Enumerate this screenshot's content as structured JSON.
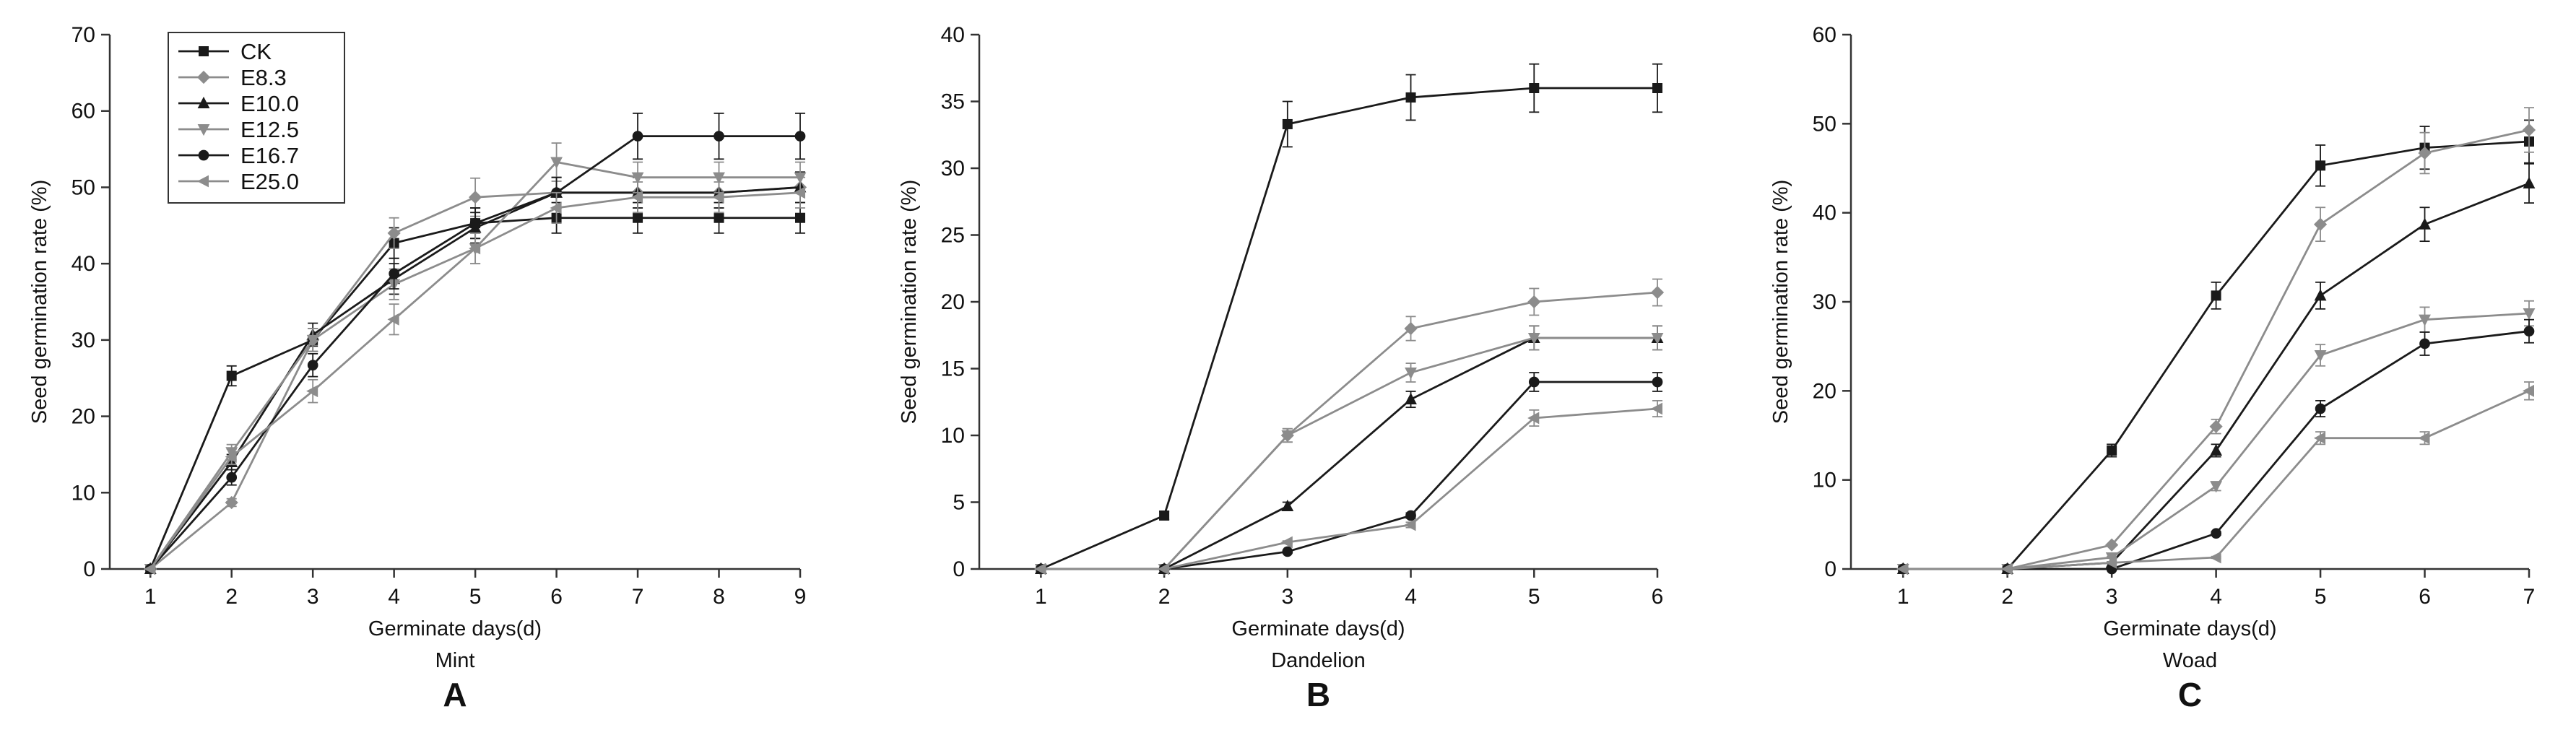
{
  "chart_data": [
    {
      "type": "line",
      "panel_letter": "A",
      "plant": "Mint",
      "xlabel": "Germinate days(d)",
      "ylabel": "Seed germination rate (%)",
      "xlim": [
        0.5,
        9
      ],
      "ylim": [
        0,
        70
      ],
      "x_ticks": [
        1,
        2,
        3,
        4,
        5,
        6,
        7,
        8,
        9
      ],
      "y_ticks": [
        0,
        10,
        20,
        30,
        40,
        50,
        60,
        70
      ],
      "x": [
        1,
        2,
        3,
        4,
        5,
        6,
        7,
        8,
        9
      ],
      "legend_position": "top-left",
      "legend": [
        "CK",
        "E8.3",
        "E10.0",
        "E12.5",
        "E16.7",
        "E25.0"
      ],
      "series": [
        {
          "name": "CK",
          "marker": "square",
          "color": "#1a1a1a",
          "values": [
            0,
            25.3,
            30,
            42.7,
            45.3,
            46,
            46,
            46,
            46
          ],
          "errors": [
            0,
            1.3,
            1.5,
            2,
            2,
            2,
            2,
            2,
            2
          ]
        },
        {
          "name": "E8.3",
          "marker": "diamond",
          "color": "#8c8c8c",
          "values": [
            0,
            8.7,
            30,
            44,
            48.7,
            49.3,
            49.3,
            49.3,
            50
          ],
          "errors": [
            0,
            0.5,
            1.5,
            2,
            2.5,
            2,
            2,
            2,
            2
          ]
        },
        {
          "name": "E10.0",
          "marker": "triangle-up",
          "color": "#1a1a1a",
          "values": [
            0,
            14,
            30.7,
            38,
            44.7,
            49.3,
            49.3,
            49.3,
            50
          ],
          "errors": [
            0,
            1,
            1.5,
            2,
            2,
            2,
            2,
            2,
            2
          ]
        },
        {
          "name": "E12.5",
          "marker": "triangle-down",
          "color": "#8c8c8c",
          "values": [
            0,
            15.3,
            30,
            37.3,
            42,
            53.3,
            51.3,
            51.3,
            51.3
          ],
          "errors": [
            0,
            1,
            1.5,
            2,
            2,
            2.5,
            2,
            2,
            2
          ]
        },
        {
          "name": "E16.7",
          "marker": "circle",
          "color": "#1a1a1a",
          "values": [
            0,
            12,
            26.7,
            38.7,
            45.3,
            49.3,
            56.7,
            56.7,
            56.7
          ],
          "errors": [
            0,
            1,
            1.5,
            2,
            2,
            2,
            3,
            3,
            3
          ]
        },
        {
          "name": "E25.0",
          "marker": "triangle-left",
          "color": "#8c8c8c",
          "values": [
            0,
            14.7,
            23.3,
            32.7,
            42,
            47.3,
            48.7,
            48.7,
            49.3
          ],
          "errors": [
            0,
            1,
            1.5,
            2,
            2,
            2,
            2,
            2,
            2
          ]
        }
      ]
    },
    {
      "type": "line",
      "panel_letter": "B",
      "plant": "Dandelion",
      "xlabel": "Germinate days(d)",
      "ylabel": "Seed germination rate (%)",
      "xlim": [
        0.5,
        6
      ],
      "ylim": [
        0,
        40
      ],
      "x_ticks": [
        1,
        2,
        3,
        4,
        5,
        6
      ],
      "y_ticks": [
        0,
        5,
        10,
        15,
        20,
        25,
        30,
        35,
        40
      ],
      "x": [
        1,
        2,
        3,
        4,
        5,
        6
      ],
      "series": [
        {
          "name": "CK",
          "marker": "square",
          "color": "#1a1a1a",
          "values": [
            0,
            4,
            33.3,
            35.3,
            36,
            36
          ],
          "errors": [
            0,
            0.3,
            1.7,
            1.7,
            1.8,
            1.8
          ]
        },
        {
          "name": "E8.3",
          "marker": "diamond",
          "color": "#8c8c8c",
          "values": [
            0,
            0,
            10,
            18,
            20,
            20.7
          ],
          "errors": [
            0,
            0,
            0.5,
            0.9,
            1,
            1
          ]
        },
        {
          "name": "E10.0",
          "marker": "triangle-up",
          "color": "#1a1a1a",
          "values": [
            0,
            0,
            4.7,
            12.7,
            17.3,
            17.3
          ],
          "errors": [
            0,
            0,
            0.3,
            0.6,
            0.9,
            0.9
          ]
        },
        {
          "name": "E12.5",
          "marker": "triangle-down",
          "color": "#8c8c8c",
          "values": [
            0,
            0,
            10,
            14.7,
            17.3,
            17.3
          ],
          "errors": [
            0,
            0,
            0.5,
            0.7,
            0.9,
            0.9
          ]
        },
        {
          "name": "E16.7",
          "marker": "circle",
          "color": "#1a1a1a",
          "values": [
            0,
            0,
            1.3,
            4,
            14,
            14
          ],
          "errors": [
            0,
            0,
            0.1,
            0.2,
            0.7,
            0.7
          ]
        },
        {
          "name": "E25.0",
          "marker": "triangle-left",
          "color": "#8c8c8c",
          "values": [
            0,
            0,
            2,
            3.3,
            11.3,
            12
          ],
          "errors": [
            0,
            0,
            0.1,
            0.2,
            0.6,
            0.6
          ]
        }
      ]
    },
    {
      "type": "line",
      "panel_letter": "C",
      "plant": "Woad",
      "xlabel": "Germinate days(d)",
      "ylabel": "Seed germination rate (%)",
      "xlim": [
        0.5,
        7
      ],
      "ylim": [
        0,
        60
      ],
      "x_ticks": [
        1,
        2,
        3,
        4,
        5,
        6,
        7
      ],
      "y_ticks": [
        0,
        10,
        20,
        30,
        40,
        50,
        60
      ],
      "x": [
        1,
        2,
        3,
        4,
        5,
        6,
        7
      ],
      "series": [
        {
          "name": "CK",
          "marker": "square",
          "color": "#1a1a1a",
          "values": [
            0,
            0,
            13.3,
            30.7,
            45.3,
            47.3,
            48
          ],
          "errors": [
            0,
            0,
            0.7,
            1.5,
            2.3,
            2.4,
            2.4
          ]
        },
        {
          "name": "E8.3",
          "marker": "diamond",
          "color": "#8c8c8c",
          "values": [
            0,
            0,
            2.7,
            16,
            38.7,
            46.7,
            49.3
          ],
          "errors": [
            0,
            0,
            0.1,
            0.8,
            1.9,
            2.3,
            2.5
          ]
        },
        {
          "name": "E10.0",
          "marker": "triangle-up",
          "color": "#1a1a1a",
          "values": [
            0,
            0,
            0.7,
            13.3,
            30.7,
            38.7,
            43.3
          ],
          "errors": [
            0,
            0,
            0.1,
            0.7,
            1.5,
            1.9,
            2.2
          ]
        },
        {
          "name": "E12.5",
          "marker": "triangle-down",
          "color": "#8c8c8c",
          "values": [
            0,
            0,
            1.3,
            9.3,
            24,
            28,
            28.7
          ],
          "errors": [
            0,
            0,
            0.1,
            0.5,
            1.2,
            1.4,
            1.4
          ]
        },
        {
          "name": "E16.7",
          "marker": "circle",
          "color": "#1a1a1a",
          "values": [
            0,
            0,
            0,
            4,
            18,
            25.3,
            26.7
          ],
          "errors": [
            0,
            0,
            0,
            0.2,
            0.9,
            1.3,
            1.3
          ]
        },
        {
          "name": "E25.0",
          "marker": "triangle-left",
          "color": "#8c8c8c",
          "values": [
            0,
            0,
            0.7,
            1.3,
            14.7,
            14.7,
            20
          ],
          "errors": [
            0,
            0,
            0.1,
            0.1,
            0.7,
            0.7,
            1
          ]
        }
      ]
    }
  ]
}
